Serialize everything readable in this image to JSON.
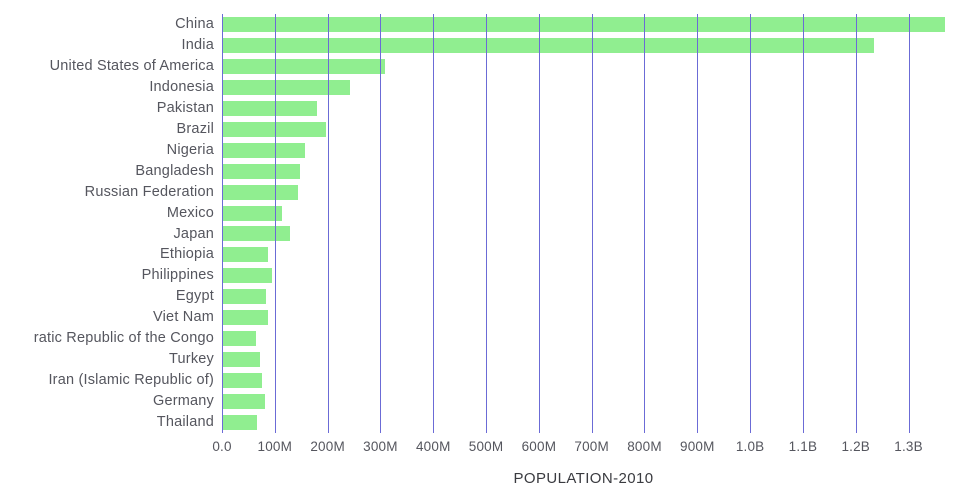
{
  "chart_data": {
    "type": "bar",
    "orientation": "horizontal",
    "title": "",
    "xlabel": "POPULATION-2010",
    "ylabel": "",
    "grid": true,
    "legend": false,
    "bar_color": "#90ee90",
    "gridline_color": "#6b6bd6",
    "text_color": "#55565e",
    "xlim_millions": [
      0,
      1369
    ],
    "categories": [
      "China",
      "India",
      "United States of America",
      "Indonesia",
      "Pakistan",
      "Brazil",
      "Nigeria",
      "Bangladesh",
      "Russian Federation",
      "Mexico",
      "Japan",
      "Ethiopia",
      "Philippines",
      "Egypt",
      "Viet Nam",
      "ratic Republic of the Congo",
      "Turkey",
      "Iran (Islamic Republic of)",
      "Germany",
      "Thailand"
    ],
    "values_millions": [
      1369,
      1234,
      309,
      242,
      179,
      196,
      158,
      148,
      143,
      114,
      129,
      88,
      94,
      83,
      88,
      65,
      72,
      75,
      81,
      67
    ],
    "x_ticks": [
      {
        "label": "0.0",
        "value": 0
      },
      {
        "label": "100M",
        "value": 100
      },
      {
        "label": "200M",
        "value": 200
      },
      {
        "label": "300M",
        "value": 300
      },
      {
        "label": "400M",
        "value": 400
      },
      {
        "label": "500M",
        "value": 500
      },
      {
        "label": "600M",
        "value": 600
      },
      {
        "label": "700M",
        "value": 700
      },
      {
        "label": "800M",
        "value": 800
      },
      {
        "label": "900M",
        "value": 900
      },
      {
        "label": "1.0B",
        "value": 1000
      },
      {
        "label": "1.1B",
        "value": 1100
      },
      {
        "label": "1.2B",
        "value": 1200
      },
      {
        "label": "1.3B",
        "value": 1300
      }
    ]
  }
}
